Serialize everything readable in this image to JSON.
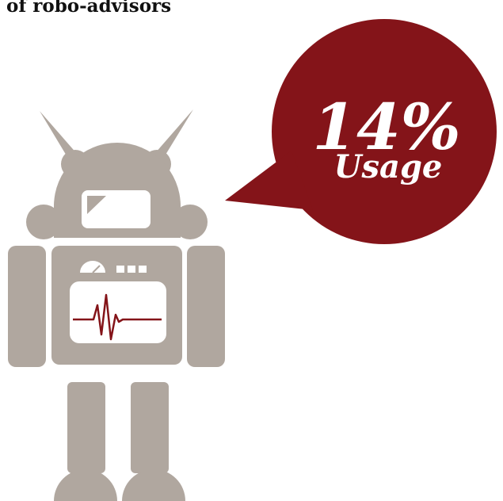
{
  "heading": "of robo-advisors",
  "stat": {
    "value": "14%",
    "label": "Usage"
  },
  "colors": {
    "robot": "#b0a79f",
    "bubble": "#841419",
    "heartbeat": "#841419",
    "text": "#111111"
  }
}
